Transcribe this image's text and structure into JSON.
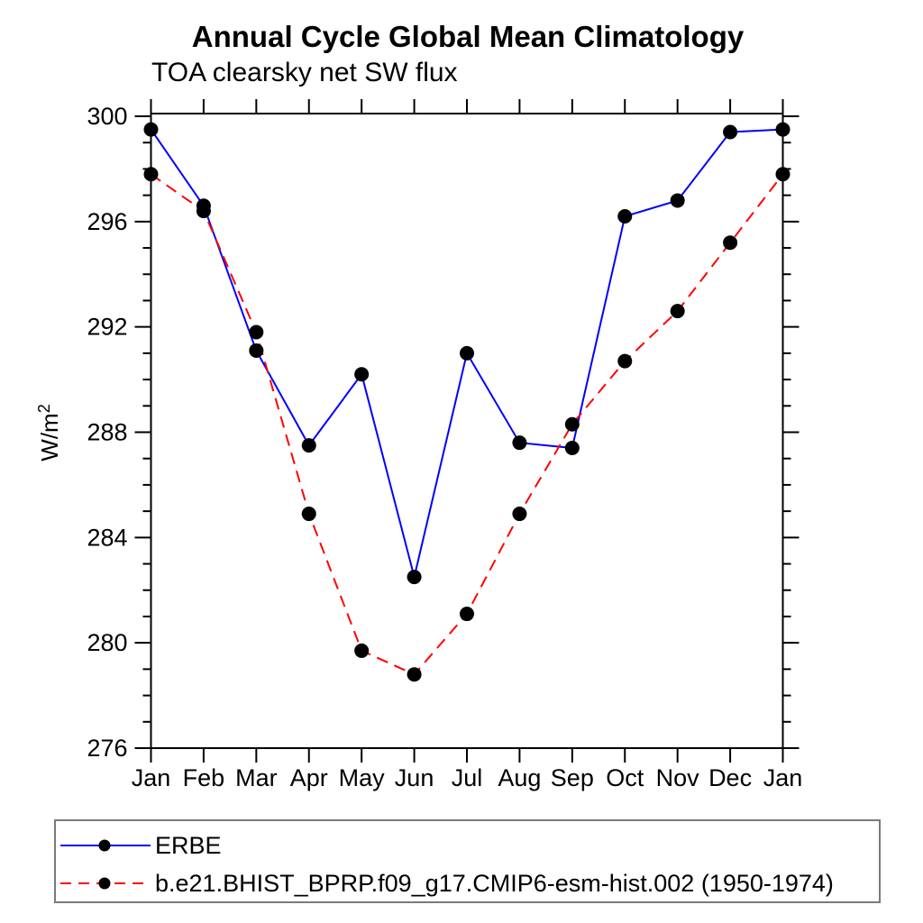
{
  "page": {
    "background_color": "#ffffff"
  },
  "chart_data": {
    "type": "line",
    "title": "Annual Cycle Global Mean Climatology",
    "subtitle": "TOA clearsky net SW flux",
    "ylabel_base": "W/m",
    "ylabel_exponent": "2",
    "categories": [
      "Jan",
      "Feb",
      "Mar",
      "Apr",
      "May",
      "Jun",
      "Jul",
      "Aug",
      "Sep",
      "Oct",
      "Nov",
      "Dec",
      "Jan"
    ],
    "ylim": [
      276,
      300
    ],
    "ytick_major_step": 4,
    "ytick_minor_step": 1,
    "ytick_labels": [
      "276",
      "280",
      "284",
      "288",
      "292",
      "296",
      "300"
    ],
    "grid": false,
    "axis_color": "#000000",
    "legend_position": "bottom-left-box",
    "series": [
      {
        "name": "ERBE",
        "color": "#0000ff",
        "line_style": "solid",
        "marker": "filled-circle",
        "marker_color": "#000000",
        "values": [
          299.5,
          296.6,
          291.1,
          287.5,
          290.2,
          282.5,
          291.0,
          287.6,
          287.4,
          296.2,
          296.8,
          299.4,
          299.5
        ]
      },
      {
        "name": "b.e21.BHIST_BPRP.f09_g17.CMIP6-esm-hist.002 (1950-1974)",
        "color": "#ff0000",
        "line_style": "dashed",
        "marker": "filled-circle",
        "marker_color": "#000000",
        "values": [
          297.8,
          296.4,
          291.8,
          284.9,
          279.7,
          278.8,
          281.1,
          284.9,
          288.3,
          290.7,
          292.6,
          295.2,
          297.8
        ]
      }
    ]
  }
}
